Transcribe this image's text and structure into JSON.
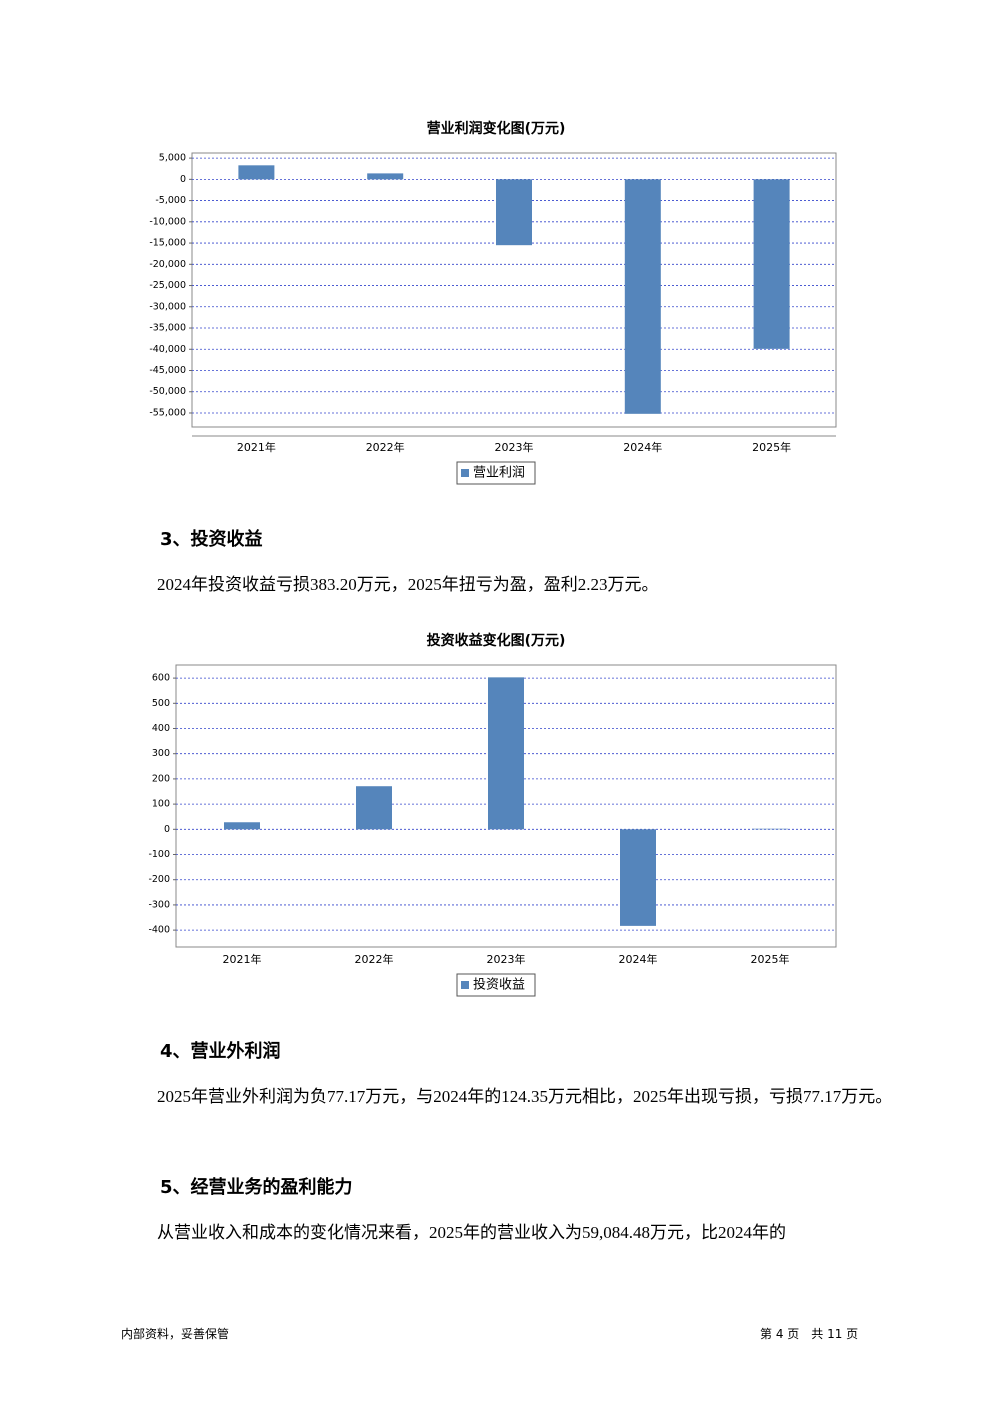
{
  "chart_data": [
    {
      "type": "bar",
      "title": "营业利润变化图(万元)",
      "categories": [
        "2021年",
        "2022年",
        "2023年",
        "2024年",
        "2025年"
      ],
      "series": [
        {
          "name": "营业利润",
          "color": "#5585bb",
          "values": [
            3300,
            1400,
            -15500,
            -55200,
            -39900
          ]
        }
      ],
      "ylim": [
        -58300,
        6200
      ],
      "yticks": [
        {
          "value": 5000,
          "label": "5,000"
        },
        0,
        {
          "value": -5000,
          "label": "-5,000"
        },
        {
          "value": -10000,
          "label": "-10,000"
        },
        {
          "value": -15000,
          "label": "-15,000"
        },
        {
          "value": -20000,
          "label": "-20,000"
        },
        {
          "value": -25000,
          "label": "-25,000"
        },
        {
          "value": -30000,
          "label": "-30,000"
        },
        {
          "value": -35000,
          "label": "-35,000"
        },
        {
          "value": -40000,
          "label": "-40,000"
        },
        {
          "value": -45000,
          "label": "-45,000"
        },
        {
          "value": -50000,
          "label": "-50,000"
        },
        {
          "value": -55000,
          "label": "-55,000"
        }
      ],
      "grid": true
    },
    {
      "type": "bar",
      "title": "投资收益变化图(万元)",
      "categories": [
        "2021年",
        "2022年",
        "2023年",
        "2024年",
        "2025年"
      ],
      "series": [
        {
          "name": "投资收益",
          "color": "#5585bb",
          "values": [
            28,
            171,
            603,
            -383.2,
            2.23
          ]
        }
      ],
      "ylim": [
        -467,
        652
      ],
      "yticks": [
        600,
        500,
        400,
        300,
        200,
        100,
        0,
        -100,
        -200,
        -300,
        -400
      ],
      "grid": true
    }
  ],
  "sections": [
    {
      "heading": "3、投资收益",
      "text": "2024年投资收益亏损383.20万元，2025年扭亏为盈，盈利2.23万元。"
    },
    {
      "heading": "4、营业外利润",
      "text": "2025年营业外利润为负77.17万元，与2024年的124.35万元相比，2025年出现亏损，亏损77.17万元。"
    },
    {
      "heading": "5、经营业务的盈利能力",
      "text": "从营业收入和成本的变化情况来看，2025年的营业收入为59,084.48万元，比2024年的"
    }
  ],
  "footer": {
    "left": "内部资料，妥善保管",
    "right": "第 4 页　共 11 页"
  }
}
